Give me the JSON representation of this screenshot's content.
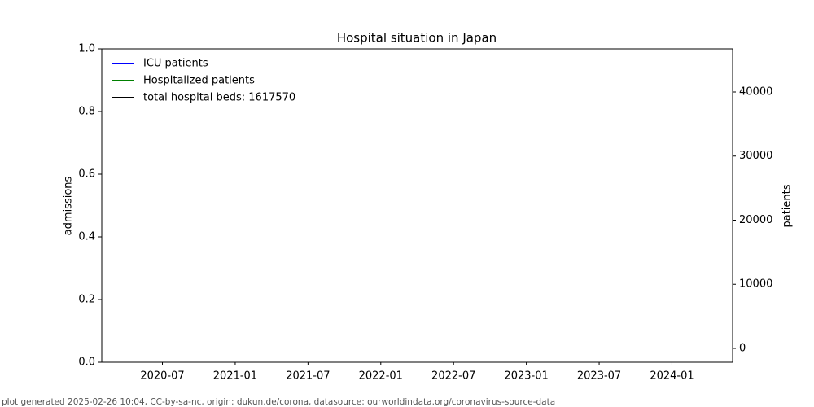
{
  "chart_data": {
    "type": "line",
    "title": "Hospital situation in Japan",
    "ylabel": "admissions",
    "y2label": "patients",
    "footer": "plot generated 2025-02-26 10:04, CC-by-sa-nc, origin: dukun.de/corona, datasource: ourworldindata.org/coronavirus-source-data",
    "x": [],
    "series": [
      {
        "name": "ICU patients",
        "color": "#0000ff",
        "values": [],
        "axis": "y2"
      },
      {
        "name": "Hospitalized patients",
        "color": "#008000",
        "values": [],
        "axis": "y2"
      },
      {
        "name": "total hospital beds: 1617570",
        "color": "#000000",
        "values": [],
        "axis": "y2"
      }
    ],
    "xlim": [
      "2020-02",
      "2024-06"
    ],
    "xticks": [
      "2020-07",
      "2021-01",
      "2021-07",
      "2022-01",
      "2022-07",
      "2023-01",
      "2023-07",
      "2024-01"
    ],
    "ylim": [
      0,
      1
    ],
    "yticks": [
      {
        "value": 0,
        "label": "0.0"
      },
      0.2,
      0.4,
      0.6,
      0.8,
      {
        "value": 1,
        "label": "1.0"
      }
    ],
    "y2lim": [
      -2160,
      46730
    ],
    "y2ticks": [
      0,
      10000,
      20000,
      30000,
      40000
    ],
    "legend": "upper left",
    "grid": false
  }
}
